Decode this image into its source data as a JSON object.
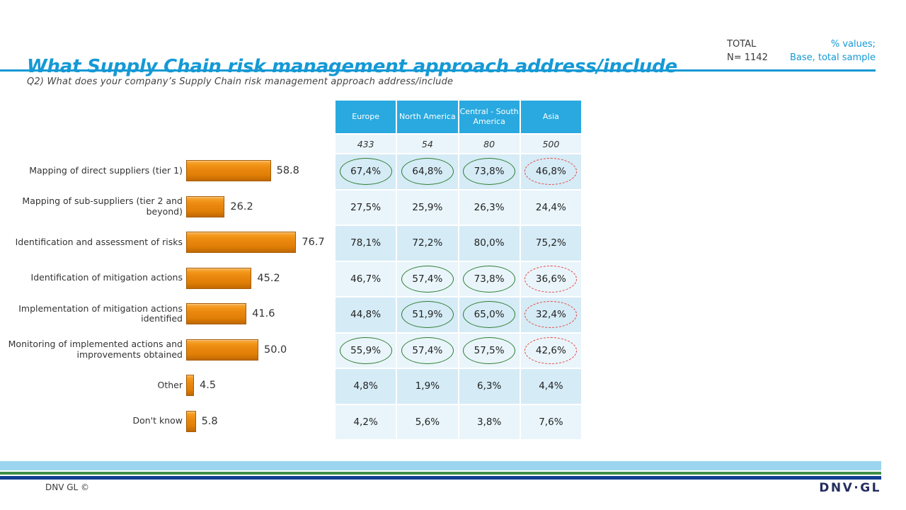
{
  "header": {
    "title": "What Supply Chain risk management approach address/include",
    "total_label": "TOTAL",
    "total_n": "N= 1142",
    "note_line1": "% values;",
    "note_line2": "Base, total sample",
    "subtitle": "Q2) What does your company’s Supply Chain risk management approach address/include"
  },
  "chart_data": {
    "type": "bar",
    "orientation": "horizontal",
    "title": "",
    "xlabel": "",
    "ylabel": "",
    "xlim": [
      0,
      100
    ],
    "grid": false,
    "bar_color": "#e8860d",
    "categories": [
      "Mapping of direct suppliers (tier 1)",
      "Mapping of sub-suppliers (tier 2 and beyond)",
      "Identification and assessment of risks",
      "Identification of mitigation actions",
      "Implementation of mitigation actions identified",
      "Monitoring of implemented actions and improvements obtained",
      "Other",
      "Don't know"
    ],
    "values": [
      58.8,
      26.2,
      76.7,
      45.2,
      41.6,
      50.0,
      4.5,
      5.8
    ],
    "value_labels": [
      "58.8",
      "26.2",
      "76.7",
      "45.2",
      "41.6",
      "50.0",
      "4.5",
      "5.8"
    ]
  },
  "table": {
    "columns": [
      "Europe",
      "North America",
      "Central - South America",
      "Asia"
    ],
    "base": [
      "433",
      "54",
      "80",
      "500"
    ],
    "rows": [
      {
        "cells": [
          "67,4%",
          "64,8%",
          "73,8%",
          "46,8%"
        ],
        "marks": [
          "green",
          "green",
          "green",
          "red"
        ]
      },
      {
        "cells": [
          "27,5%",
          "25,9%",
          "26,3%",
          "24,4%"
        ],
        "marks": [
          null,
          null,
          null,
          null
        ]
      },
      {
        "cells": [
          "78,1%",
          "72,2%",
          "80,0%",
          "75,2%"
        ],
        "marks": [
          null,
          null,
          null,
          null
        ]
      },
      {
        "cells": [
          "46,7%",
          "57,4%",
          "73,8%",
          "36,6%"
        ],
        "marks": [
          null,
          "green",
          "green",
          "red"
        ]
      },
      {
        "cells": [
          "44,8%",
          "51,9%",
          "65,0%",
          "32,4%"
        ],
        "marks": [
          null,
          "green",
          "green",
          "red"
        ]
      },
      {
        "cells": [
          "55,9%",
          "57,4%",
          "57,5%",
          "42,6%"
        ],
        "marks": [
          "green",
          "green",
          "green",
          "red"
        ]
      },
      {
        "cells": [
          "4,8%",
          "1,9%",
          "6,3%",
          "4,4%"
        ],
        "marks": [
          null,
          null,
          null,
          null
        ]
      },
      {
        "cells": [
          "4,2%",
          "5,6%",
          "3,8%",
          "7,6%"
        ],
        "marks": [
          null,
          null,
          null,
          null
        ]
      }
    ]
  },
  "footer": {
    "copyright": "DNV GL ©",
    "logo": "DNV·GL"
  },
  "colors": {
    "accent_blue": "#1599d5",
    "table_header_bg": "#29a9df",
    "row_odd": "#d5ebf6",
    "row_even": "#e9f5fb",
    "bar_orange": "#e8860d",
    "circle_green": "#2f7d32",
    "circle_red": "#e5403a",
    "stripe_lightblue": "#9cd5ef",
    "stripe_green": "#3e8e49",
    "stripe_navy": "#123e92",
    "logo_navy": "#242e5f"
  }
}
